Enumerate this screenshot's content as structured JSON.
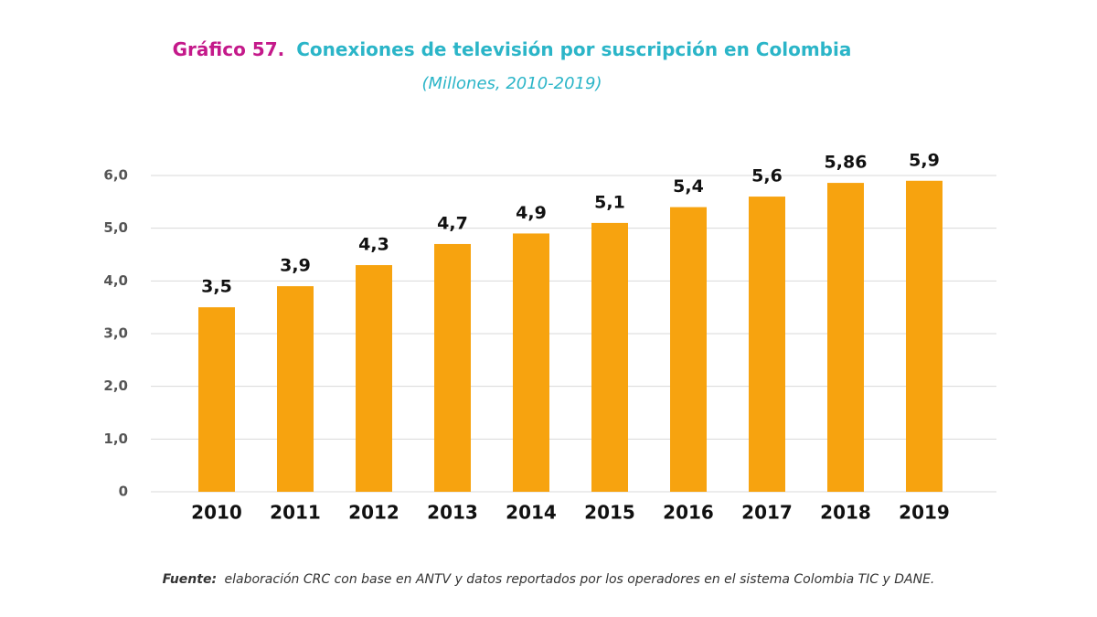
{
  "chart_data": {
    "type": "bar",
    "title_label": "Gráfico 57.",
    "title": "Conexiones de televisión por suscripción en Colombia",
    "subtitle": "(Millones, 2010-2019)",
    "categories": [
      "2010",
      "2011",
      "2012",
      "2013",
      "2014",
      "2015",
      "2016",
      "2017",
      "2018",
      "2019"
    ],
    "values": [
      3.5,
      3.9,
      4.3,
      4.7,
      4.9,
      5.1,
      5.4,
      5.6,
      5.86,
      5.9
    ],
    "value_labels": [
      "3,5",
      "3,9",
      "4,3",
      "4,7",
      "4,9",
      "5,1",
      "5,4",
      "5,6",
      "5,86",
      "5,9"
    ],
    "color": "#f7a30f",
    "ylim": [
      0,
      6
    ],
    "yticks": [
      0,
      {
        "value": 1,
        "label": "1,0"
      },
      {
        "value": 2,
        "label": "2,0"
      },
      {
        "value": 3,
        "label": "3,0"
      },
      {
        "value": 4,
        "label": "4,0"
      },
      {
        "value": 5,
        "label": "5,0"
      },
      {
        "value": 6,
        "label": "6,0"
      }
    ],
    "grid": true,
    "source_label": "Fuente:",
    "source": "elaboración CRC con base en ANTV y datos reportados por los operadores en el sistema Colombia TIC y DANE."
  }
}
